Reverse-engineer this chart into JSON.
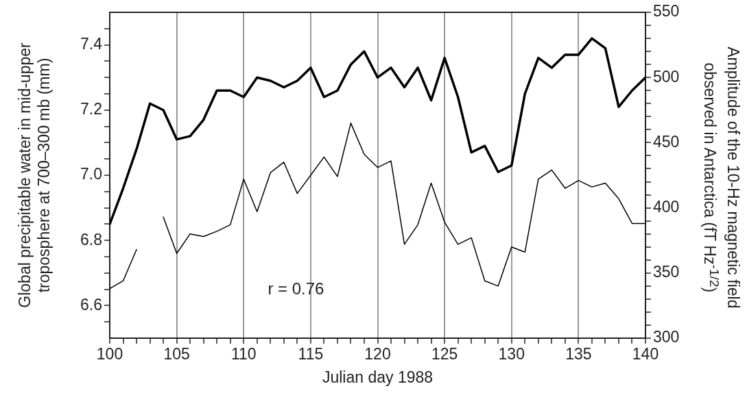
{
  "chart_data": {
    "type": "line",
    "xlabel": "Julian day 1988",
    "ylabel": "Global precipitable water in mid-upper troposphere at 700–300 mb (mm)",
    "y2label": "Amplitude of the 10-Hz magnetic field observed in Antarctica (fT Hz$^{-1/2}$)",
    "x": [
      100,
      101,
      102,
      103,
      104,
      105,
      106,
      107,
      108,
      109,
      110,
      111,
      112,
      113,
      114,
      115,
      116,
      117,
      118,
      119,
      120,
      121,
      122,
      123,
      124,
      125,
      126,
      127,
      128,
      129,
      130,
      131,
      132,
      133,
      134,
      135,
      136,
      137,
      138,
      139,
      140
    ],
    "series": [
      {
        "color": "#000000",
        "values": [
          6.85,
          6.96,
          7.08,
          7.22,
          7.2,
          7.11,
          7.12,
          7.17,
          7.26,
          7.26,
          7.24,
          7.3,
          7.29,
          7.27,
          7.29,
          7.33,
          7.24,
          7.26,
          7.34,
          7.38,
          7.3,
          7.33,
          7.27,
          7.33,
          7.23,
          7.36,
          7.24,
          7.07,
          7.09,
          7.01,
          7.03,
          7.25,
          7.36,
          7.33,
          7.37,
          7.37,
          7.42,
          7.39,
          7.21,
          7.26,
          7.3
        ]
      },
      {
        "color": "#000000",
        "axis": "y2",
        "values": [
          338,
          344,
          368,
          null,
          393,
          365,
          380,
          378,
          382,
          387,
          422,
          397,
          427,
          435,
          411,
          425,
          439,
          424,
          465,
          441,
          431,
          436,
          372,
          387,
          419,
          389,
          372,
          377,
          344,
          340,
          370,
          366,
          422,
          429,
          415,
          421,
          416,
          419,
          407,
          388,
          388
        ]
      }
    ],
    "xlim": [
      100,
      140
    ],
    "xticks": [
      100,
      {
        "value": 101,
        "label": null
      },
      {
        "value": 102,
        "label": null
      },
      {
        "value": 103,
        "label": null
      },
      {
        "value": 104,
        "label": null
      },
      105,
      {
        "value": 106,
        "label": null
      },
      {
        "value": 107,
        "label": null
      },
      {
        "value": 108,
        "label": null
      },
      {
        "value": 109,
        "label": null
      },
      110,
      {
        "value": 111,
        "label": null
      },
      {
        "value": 112,
        "label": null
      },
      {
        "value": 113,
        "label": null
      },
      {
        "value": 114,
        "label": null
      },
      115,
      {
        "value": 116,
        "label": null
      },
      {
        "value": 117,
        "label": null
      },
      {
        "value": 118,
        "label": null
      },
      {
        "value": 119,
        "label": null
      },
      120,
      {
        "value": 121,
        "label": null
      },
      {
        "value": 122,
        "label": null
      },
      {
        "value": 123,
        "label": null
      },
      {
        "value": 124,
        "label": null
      },
      125,
      {
        "value": 126,
        "label": null
      },
      {
        "value": 127,
        "label": null
      },
      {
        "value": 128,
        "label": null
      },
      {
        "value": 129,
        "label": null
      },
      130,
      {
        "value": 131,
        "label": null
      },
      {
        "value": 132,
        "label": null
      },
      {
        "value": 133,
        "label": null
      },
      {
        "value": 134,
        "label": null
      },
      135,
      {
        "value": 136,
        "label": null
      },
      {
        "value": 137,
        "label": null
      },
      {
        "value": 138,
        "label": null
      },
      {
        "value": 139,
        "label": null
      },
      140
    ],
    "ylim": [
      6.5,
      7.5
    ],
    "yticks": [
      {
        "value": 6.55,
        "label": null
      },
      {
        "value": 6.6,
        "label": "6.6"
      },
      {
        "value": 6.65,
        "label": null
      },
      {
        "value": 6.7,
        "label": null
      },
      {
        "value": 6.75,
        "label": null
      },
      {
        "value": 6.8,
        "label": "6.8"
      },
      {
        "value": 6.85,
        "label": null
      },
      {
        "value": 6.9,
        "label": null
      },
      {
        "value": 6.95,
        "label": null
      },
      {
        "value": 7.0,
        "label": "7.0"
      },
      {
        "value": 7.05,
        "label": null
      },
      {
        "value": 7.1,
        "label": null
      },
      {
        "value": 7.15,
        "label": null
      },
      {
        "value": 7.2,
        "label": "7.2"
      },
      {
        "value": 7.25,
        "label": null
      },
      {
        "value": 7.3,
        "label": null
      },
      {
        "value": 7.35,
        "label": null
      },
      {
        "value": 7.4,
        "label": "7.4"
      },
      {
        "value": 7.45,
        "label": null
      }
    ],
    "y2lim": [
      300,
      550
    ],
    "y2ticks": [
      300,
      {
        "value": 310,
        "label": null
      },
      {
        "value": 320,
        "label": null
      },
      {
        "value": 330,
        "label": null
      },
      {
        "value": 340,
        "label": null
      },
      350,
      {
        "value": 360,
        "label": null
      },
      {
        "value": 370,
        "label": null
      },
      {
        "value": 380,
        "label": null
      },
      {
        "value": 390,
        "label": null
      },
      400,
      {
        "value": 410,
        "label": null
      },
      {
        "value": 420,
        "label": null
      },
      {
        "value": 430,
        "label": null
      },
      {
        "value": 440,
        "label": null
      },
      450,
      {
        "value": 460,
        "label": null
      },
      {
        "value": 470,
        "label": null
      },
      {
        "value": 480,
        "label": null
      },
      {
        "value": 490,
        "label": null
      },
      500,
      {
        "value": 510,
        "label": null
      },
      {
        "value": 520,
        "label": null
      },
      {
        "value": 530,
        "label": null
      },
      {
        "value": 540,
        "label": null
      },
      550
    ],
    "grid": "x",
    "legend": false,
    "marker": "none",
    "line_style": "solid",
    "annotations": [
      "r = 0.76"
    ]
  }
}
